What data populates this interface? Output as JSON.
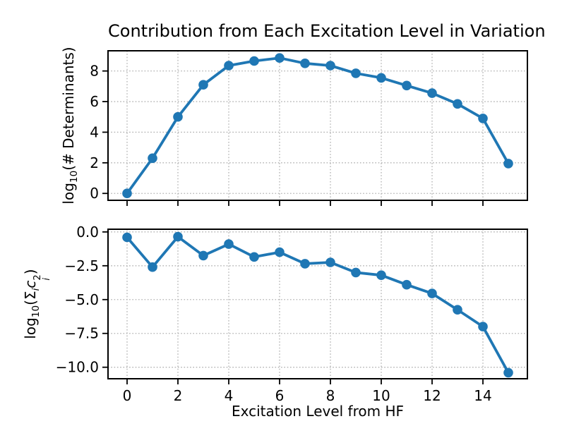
{
  "figure": {
    "title": "Contribution from Each Excitation Level in Variation",
    "background_color": "#ffffff",
    "line_color": "#1f77b4",
    "grid_color": "#b0b0b0",
    "spine_color": "#000000"
  },
  "chart_data": [
    {
      "type": "line",
      "name": "log10-number-of-determinants-vs-excitation-level",
      "ylabel": "log10(# Determinants)",
      "ylabel_parts": [
        {
          "t": "log"
        },
        {
          "sub": "10"
        },
        {
          "t": "(# Determinants)"
        }
      ],
      "x": [
        0,
        1,
        2,
        3,
        4,
        5,
        6,
        7,
        8,
        9,
        10,
        11,
        12,
        13,
        14,
        15
      ],
      "y": [
        0.0,
        2.3,
        5.0,
        7.1,
        8.35,
        8.65,
        8.85,
        8.5,
        8.35,
        7.85,
        7.55,
        7.05,
        6.55,
        5.85,
        4.9,
        1.95
      ],
      "xlim": [
        -0.75,
        15.75
      ],
      "ylim": [
        -0.45,
        9.32
      ],
      "xticks": [
        0,
        2,
        4,
        6,
        8,
        10,
        12,
        14
      ],
      "xtick_labels": [
        "0",
        "2",
        "4",
        "6",
        "8",
        "10",
        "12",
        "14"
      ],
      "show_xtick_labels": false,
      "yticks": [
        0,
        2,
        4,
        6,
        8
      ],
      "ytick_labels": [
        "0",
        "2",
        "4",
        "6",
        "8"
      ],
      "grid": true,
      "marker": "o",
      "legend": "none"
    },
    {
      "type": "line",
      "name": "log10-sum-ci-squared-vs-excitation-level",
      "ylabel": "log10(Σ_i c_i^2)",
      "ylabel_parts": [
        {
          "t": "log"
        },
        {
          "sub": "10"
        },
        {
          "t": "(Σ"
        },
        {
          "sub": "i",
          "it": true
        },
        {
          "t": "c",
          "it": true
        },
        {
          "stack": {
            "sup": "2",
            "sub": "i"
          }
        },
        {
          "t": ")"
        }
      ],
      "xlabel": "Excitation Level from HF",
      "x": [
        0,
        1,
        2,
        3,
        4,
        5,
        6,
        7,
        8,
        9,
        10,
        11,
        12,
        13,
        14,
        15
      ],
      "y": [
        -0.4,
        -2.6,
        -0.35,
        -1.75,
        -0.9,
        -1.85,
        -1.5,
        -2.35,
        -2.25,
        -3.0,
        -3.2,
        -3.9,
        -4.55,
        -5.75,
        -7.0,
        -10.4
      ],
      "xlim": [
        -0.75,
        15.75
      ],
      "ylim": [
        -10.85,
        0.2
      ],
      "xticks": [
        0,
        2,
        4,
        6,
        8,
        10,
        12,
        14
      ],
      "xtick_labels": [
        "0",
        "2",
        "4",
        "6",
        "8",
        "10",
        "12",
        "14"
      ],
      "show_xtick_labels": true,
      "yticks": [
        0.0,
        -2.5,
        -5.0,
        -7.5,
        -10.0
      ],
      "ytick_labels": [
        "0.0",
        "−2.5",
        "−5.0",
        "−7.5",
        "−10.0"
      ],
      "grid": true,
      "marker": "o",
      "legend": "none"
    }
  ]
}
